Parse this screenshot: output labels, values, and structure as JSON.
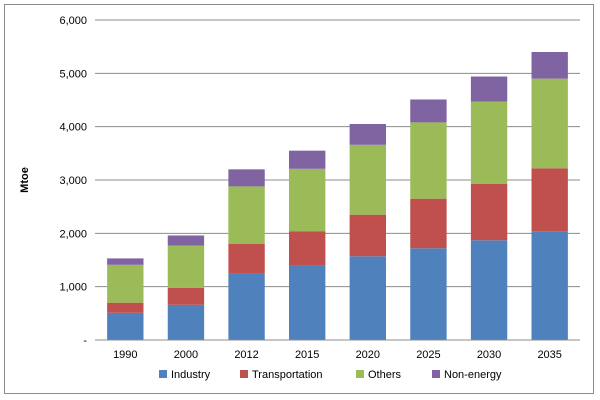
{
  "chart_data": {
    "type": "bar",
    "stacked": true,
    "title": "",
    "xlabel": "",
    "ylabel": "Mtoe",
    "ylim": [
      0,
      6000
    ],
    "yticks": [
      0,
      1000,
      2000,
      3000,
      4000,
      5000,
      6000
    ],
    "ytick_labels": [
      "-",
      "1,000",
      "2,000",
      "3,000",
      "4,000",
      "5,000",
      "6,000"
    ],
    "grid": true,
    "legend_position": "bottom",
    "categories": [
      "1990",
      "2000",
      "2012",
      "2015",
      "2020",
      "2025",
      "2030",
      "2035"
    ],
    "series": [
      {
        "name": "Industry",
        "color": "#4f81bd",
        "values": [
          510,
          660,
          1240,
          1390,
          1570,
          1720,
          1870,
          2030
        ]
      },
      {
        "name": "Transportation",
        "color": "#c0504d",
        "values": [
          190,
          320,
          560,
          650,
          780,
          930,
          1060,
          1190
        ]
      },
      {
        "name": "Others",
        "color": "#9bbb59",
        "values": [
          710,
          790,
          1080,
          1170,
          1310,
          1430,
          1540,
          1680
        ]
      },
      {
        "name": "Non-energy",
        "color": "#8064a2",
        "values": [
          120,
          190,
          320,
          340,
          390,
          430,
          470,
          500
        ]
      }
    ]
  }
}
